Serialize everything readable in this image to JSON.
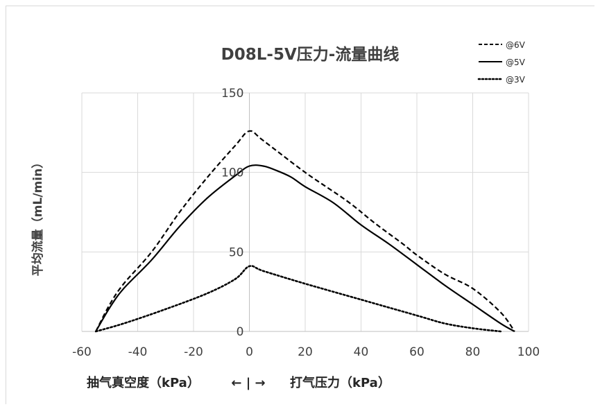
{
  "chart_data": {
    "type": "line",
    "title": "D08L-5V压力-流量曲线",
    "ylabel": "平均流量（mL/min）",
    "xlabel_left": "抽气真空度（kPa）",
    "xlabel_arrow": "← | →",
    "xlabel_right": "打气压力（kPa）",
    "xlim": [
      -60,
      100
    ],
    "ylim": [
      0,
      150
    ],
    "x_ticks": [
      "-60",
      "-40",
      "-20",
      "0",
      "20",
      "40",
      "60",
      "80",
      "100"
    ],
    "y_ticks": [
      "0",
      "50",
      "100",
      "150"
    ],
    "grid": true,
    "legend_position": "top-right",
    "series": [
      {
        "name": "@6V",
        "style": "dashed",
        "color": "#000000",
        "x": [
          -55,
          -50,
          -45,
          -35,
          -25,
          -15,
          -5,
          0,
          5,
          20,
          35,
          45,
          55,
          60,
          70,
          80,
          90,
          95
        ],
        "y": [
          0,
          17,
          30,
          50,
          75,
          97,
          117,
          126,
          120,
          100,
          82,
          68,
          55,
          48,
          36,
          27,
          12,
          0
        ]
      },
      {
        "name": "@5V",
        "style": "solid",
        "color": "#000000",
        "x": [
          -55,
          -50,
          -45,
          -35,
          -25,
          -15,
          -5,
          0,
          5,
          10,
          15,
          20,
          30,
          40,
          50,
          60,
          70,
          80,
          90,
          95
        ],
        "y": [
          0,
          15,
          27,
          45,
          66,
          84,
          98,
          104,
          104,
          101,
          97,
          91,
          81,
          67,
          55,
          42,
          29,
          17,
          5,
          0
        ]
      },
      {
        "name": "@3V",
        "style": "dotted",
        "color": "#000000",
        "x": [
          -55,
          -45,
          -30,
          -15,
          -5,
          0,
          5,
          20,
          40,
          60,
          70,
          80,
          90
        ],
        "y": [
          0,
          5,
          14,
          24,
          33,
          41,
          38,
          30,
          20,
          10,
          5,
          2,
          0
        ]
      }
    ]
  }
}
